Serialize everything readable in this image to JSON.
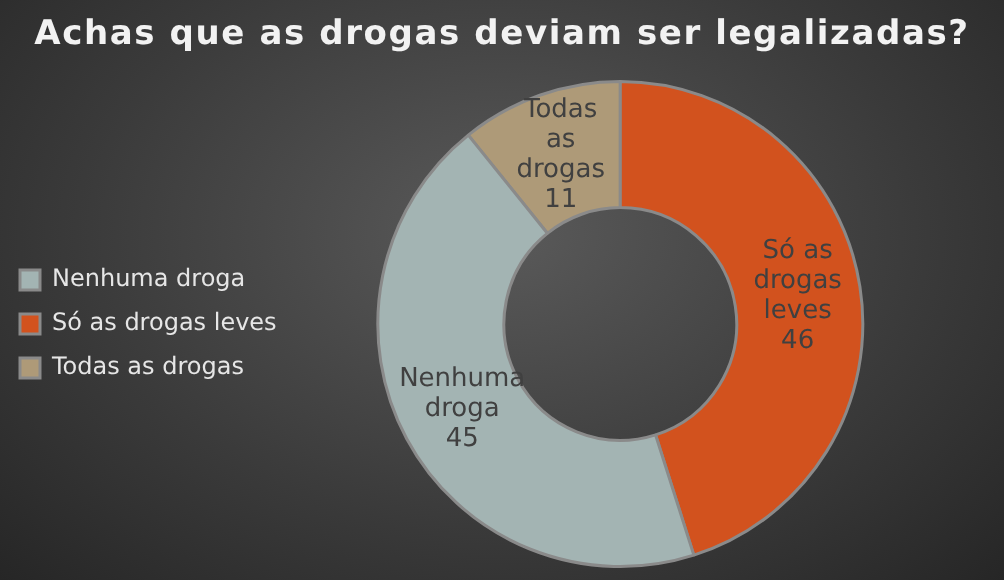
{
  "chart_data": {
    "type": "donut",
    "title": "Achas que as drogas deviam ser legalizadas?",
    "categories": [
      "Nenhuma droga",
      "Só as drogas leves",
      "Todas as drogas"
    ],
    "values": [
      45,
      46,
      11
    ],
    "colors": [
      "#a3b4b3",
      "#d2521e",
      "#ae9a78"
    ],
    "legend": "left",
    "data_labels": true
  }
}
